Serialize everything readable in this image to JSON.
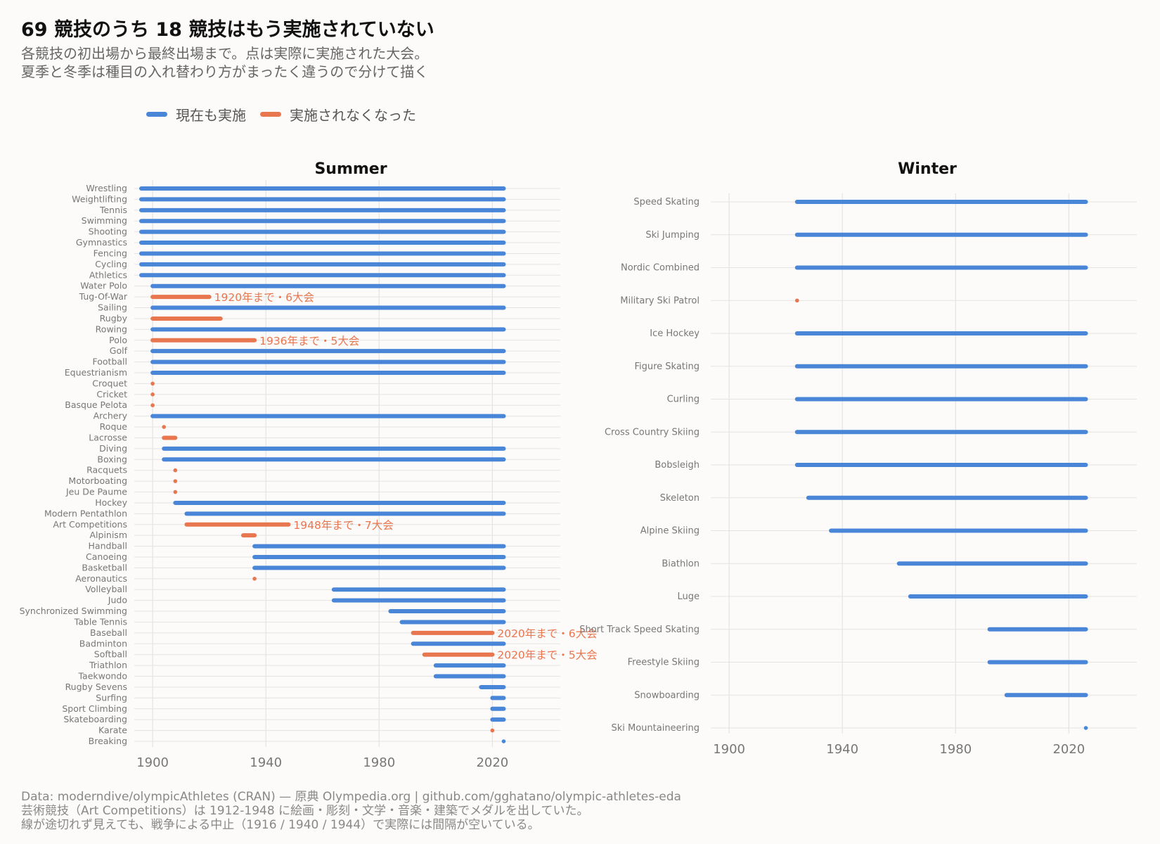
{
  "title": "69 競技のうち 18 競技はもう実施されていない",
  "subtitle_lines": [
    "各競技の初出場から最終出場まで。点は実際に実施された大会。",
    "夏季と冬季は種目の入れ替わり方がまったく違うので分けて描く"
  ],
  "legend": [
    {
      "label": "現在も実施",
      "color": "#4a86d8"
    },
    {
      "label": "実施されなくなった",
      "color": "#e8764f"
    }
  ],
  "caption_lines": [
    "Data: moderndive/olympicAthletes (CRAN) — 原典 Olympedia.org | github.com/gghatano/olympic-athletes-eda",
    "芸術競技（Art Competitions）は 1912-1948 に絵画・彫刻・文学・音楽・建築でメダルを出していた。",
    "線が途切れず見えても、戦争による中止（1916 / 1940 / 1944）で実際には間隔が空いている。"
  ],
  "colors": {
    "active": "#4a86d8",
    "discontinued": "#e8764f",
    "grid": "#e3e3e3"
  },
  "chart_data": [
    {
      "type": "timeline",
      "title": "Summer",
      "x_ticks": [
        1900,
        1940,
        1980,
        2020
      ],
      "xlim": [
        1896,
        2044
      ],
      "series": [
        {
          "sport": "Wrestling",
          "start": 1896,
          "end": 2024,
          "status": "active"
        },
        {
          "sport": "Weightlifting",
          "start": 1896,
          "end": 2024,
          "status": "active"
        },
        {
          "sport": "Tennis",
          "start": 1896,
          "end": 2024,
          "status": "active"
        },
        {
          "sport": "Swimming",
          "start": 1896,
          "end": 2024,
          "status": "active"
        },
        {
          "sport": "Shooting",
          "start": 1896,
          "end": 2024,
          "status": "active"
        },
        {
          "sport": "Gymnastics",
          "start": 1896,
          "end": 2024,
          "status": "active"
        },
        {
          "sport": "Fencing",
          "start": 1896,
          "end": 2024,
          "status": "active"
        },
        {
          "sport": "Cycling",
          "start": 1896,
          "end": 2024,
          "status": "active"
        },
        {
          "sport": "Athletics",
          "start": 1896,
          "end": 2024,
          "status": "active"
        },
        {
          "sport": "Water Polo",
          "start": 1900,
          "end": 2024,
          "status": "active"
        },
        {
          "sport": "Tug-Of-War",
          "start": 1900,
          "end": 1920,
          "status": "discontinued",
          "annotation": "1920年まで・6大会"
        },
        {
          "sport": "Sailing",
          "start": 1900,
          "end": 2024,
          "status": "active"
        },
        {
          "sport": "Rugby",
          "start": 1900,
          "end": 1924,
          "status": "discontinued"
        },
        {
          "sport": "Rowing",
          "start": 1900,
          "end": 2024,
          "status": "active"
        },
        {
          "sport": "Polo",
          "start": 1900,
          "end": 1936,
          "status": "discontinued",
          "annotation": "1936年まで・5大会"
        },
        {
          "sport": "Golf",
          "start": 1900,
          "end": 2024,
          "status": "active"
        },
        {
          "sport": "Football",
          "start": 1900,
          "end": 2024,
          "status": "active"
        },
        {
          "sport": "Equestrianism",
          "start": 1900,
          "end": 2024,
          "status": "active"
        },
        {
          "sport": "Croquet",
          "start": 1900,
          "end": 1900,
          "status": "discontinued"
        },
        {
          "sport": "Cricket",
          "start": 1900,
          "end": 1900,
          "status": "discontinued"
        },
        {
          "sport": "Basque Pelota",
          "start": 1900,
          "end": 1900,
          "status": "discontinued"
        },
        {
          "sport": "Archery",
          "start": 1900,
          "end": 2024,
          "status": "active"
        },
        {
          "sport": "Roque",
          "start": 1904,
          "end": 1904,
          "status": "discontinued"
        },
        {
          "sport": "Lacrosse",
          "start": 1904,
          "end": 1908,
          "status": "discontinued"
        },
        {
          "sport": "Diving",
          "start": 1904,
          "end": 2024,
          "status": "active"
        },
        {
          "sport": "Boxing",
          "start": 1904,
          "end": 2024,
          "status": "active"
        },
        {
          "sport": "Racquets",
          "start": 1908,
          "end": 1908,
          "status": "discontinued"
        },
        {
          "sport": "Motorboating",
          "start": 1908,
          "end": 1908,
          "status": "discontinued"
        },
        {
          "sport": "Jeu De Paume",
          "start": 1908,
          "end": 1908,
          "status": "discontinued"
        },
        {
          "sport": "Hockey",
          "start": 1908,
          "end": 2024,
          "status": "active"
        },
        {
          "sport": "Modern Pentathlon",
          "start": 1912,
          "end": 2024,
          "status": "active"
        },
        {
          "sport": "Art Competitions",
          "start": 1912,
          "end": 1948,
          "status": "discontinued",
          "annotation": "1948年まで・7大会"
        },
        {
          "sport": "Alpinism",
          "start": 1932,
          "end": 1936,
          "status": "discontinued"
        },
        {
          "sport": "Handball",
          "start": 1936,
          "end": 2024,
          "status": "active"
        },
        {
          "sport": "Canoeing",
          "start": 1936,
          "end": 2024,
          "status": "active"
        },
        {
          "sport": "Basketball",
          "start": 1936,
          "end": 2024,
          "status": "active"
        },
        {
          "sport": "Aeronautics",
          "start": 1936,
          "end": 1936,
          "status": "discontinued"
        },
        {
          "sport": "Volleyball",
          "start": 1964,
          "end": 2024,
          "status": "active"
        },
        {
          "sport": "Judo",
          "start": 1964,
          "end": 2024,
          "status": "active"
        },
        {
          "sport": "Synchronized Swimming",
          "start": 1984,
          "end": 2024,
          "status": "active"
        },
        {
          "sport": "Table Tennis",
          "start": 1988,
          "end": 2024,
          "status": "active"
        },
        {
          "sport": "Baseball",
          "start": 1992,
          "end": 2020,
          "status": "discontinued",
          "annotation": "2020年まで・6大会"
        },
        {
          "sport": "Badminton",
          "start": 1992,
          "end": 2024,
          "status": "active"
        },
        {
          "sport": "Softball",
          "start": 1996,
          "end": 2020,
          "status": "discontinued",
          "annotation": "2020年まで・5大会"
        },
        {
          "sport": "Triathlon",
          "start": 2000,
          "end": 2024,
          "status": "active"
        },
        {
          "sport": "Taekwondo",
          "start": 2000,
          "end": 2024,
          "status": "active"
        },
        {
          "sport": "Rugby Sevens",
          "start": 2016,
          "end": 2024,
          "status": "active"
        },
        {
          "sport": "Surfing",
          "start": 2020,
          "end": 2024,
          "status": "active"
        },
        {
          "sport": "Sport Climbing",
          "start": 2020,
          "end": 2024,
          "status": "active"
        },
        {
          "sport": "Skateboarding",
          "start": 2020,
          "end": 2024,
          "status": "active"
        },
        {
          "sport": "Karate",
          "start": 2020,
          "end": 2020,
          "status": "discontinued"
        },
        {
          "sport": "Breaking",
          "start": 2024,
          "end": 2024,
          "status": "active"
        }
      ]
    },
    {
      "type": "timeline",
      "title": "Winter",
      "x_ticks": [
        1900,
        1940,
        1980,
        2020
      ],
      "xlim": [
        1896,
        2044
      ],
      "series": [
        {
          "sport": "Speed Skating",
          "start": 1924,
          "end": 2026,
          "status": "active"
        },
        {
          "sport": "Ski Jumping",
          "start": 1924,
          "end": 2026,
          "status": "active"
        },
        {
          "sport": "Nordic Combined",
          "start": 1924,
          "end": 2026,
          "status": "active"
        },
        {
          "sport": "Military Ski Patrol",
          "start": 1924,
          "end": 1924,
          "status": "discontinued"
        },
        {
          "sport": "Ice Hockey",
          "start": 1924,
          "end": 2026,
          "status": "active"
        },
        {
          "sport": "Figure Skating",
          "start": 1924,
          "end": 2026,
          "status": "active"
        },
        {
          "sport": "Curling",
          "start": 1924,
          "end": 2026,
          "status": "active"
        },
        {
          "sport": "Cross Country Skiing",
          "start": 1924,
          "end": 2026,
          "status": "active"
        },
        {
          "sport": "Bobsleigh",
          "start": 1924,
          "end": 2026,
          "status": "active"
        },
        {
          "sport": "Skeleton",
          "start": 1928,
          "end": 2026,
          "status": "active"
        },
        {
          "sport": "Alpine Skiing",
          "start": 1936,
          "end": 2026,
          "status": "active"
        },
        {
          "sport": "Biathlon",
          "start": 1960,
          "end": 2026,
          "status": "active"
        },
        {
          "sport": "Luge",
          "start": 1964,
          "end": 2026,
          "status": "active"
        },
        {
          "sport": "Short Track Speed Skating",
          "start": 1992,
          "end": 2026,
          "status": "active"
        },
        {
          "sport": "Freestyle Skiing",
          "start": 1992,
          "end": 2026,
          "status": "active"
        },
        {
          "sport": "Snowboarding",
          "start": 1998,
          "end": 2026,
          "status": "active"
        },
        {
          "sport": "Ski Mountaineering",
          "start": 2026,
          "end": 2026,
          "status": "active"
        }
      ]
    }
  ]
}
